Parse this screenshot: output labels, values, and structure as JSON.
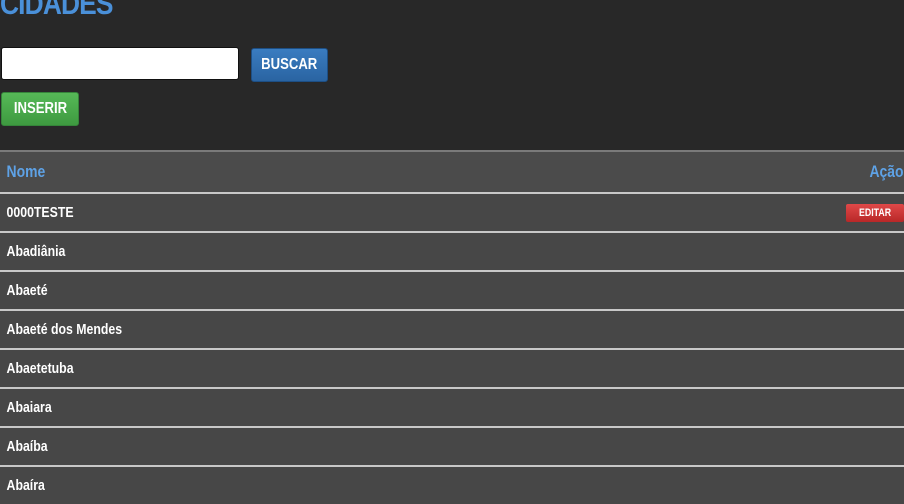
{
  "page": {
    "title": "CIDADES"
  },
  "search": {
    "value": "",
    "placeholder": ""
  },
  "buttons": {
    "buscar": "BUSCAR",
    "inserir": "INSERIR"
  },
  "table": {
    "headers": {
      "nome": "Nome",
      "acao": "Ação"
    },
    "edit_label": "EDITAR",
    "rows": [
      "0000TESTE",
      "Abadiânia",
      "Abaeté",
      "Abaeté dos Mendes",
      "Abaetetuba",
      "Abaiara",
      "Abaíba",
      "Abaíra"
    ]
  }
}
